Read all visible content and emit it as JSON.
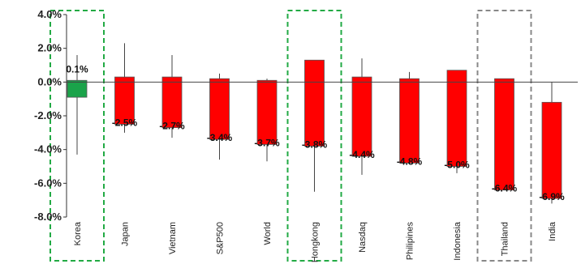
{
  "chart_data": {
    "type": "candlestick",
    "title": "",
    "xlabel": "",
    "ylabel": "",
    "ylim": [
      -8.0,
      4.0
    ],
    "yticks": [
      4.0,
      2.0,
      0.0,
      -2.0,
      -4.0,
      -6.0,
      -8.0
    ],
    "ytick_labels": [
      "4.0%",
      "2.0%",
      "0.0%",
      "-2.0%",
      "-4.0%",
      "-6.0%",
      "-8.0%"
    ],
    "grid": false,
    "categories": [
      "Korea",
      "Japan",
      "Vietnam",
      "S&P500",
      "World",
      "Hongkong",
      "Nasdaq",
      "Philipines",
      "Indonesia",
      "Thailand",
      "India"
    ],
    "data": [
      {
        "open": 0.0,
        "close": 0.1,
        "high": 1.6,
        "low": -4.3,
        "body_low": -0.9,
        "label": "0.1%",
        "color": "#1aa34a"
      },
      {
        "open": 0.3,
        "close": -2.5,
        "high": 2.3,
        "low": -3.0,
        "label": "-2.5%",
        "color": "#ff0000"
      },
      {
        "open": 0.3,
        "close": -2.7,
        "high": 1.6,
        "low": -3.3,
        "label": "-2.7%",
        "color": "#ff0000"
      },
      {
        "open": 0.2,
        "close": -3.4,
        "high": 0.5,
        "low": -4.6,
        "label": "-3.4%",
        "color": "#ff0000"
      },
      {
        "open": 0.1,
        "close": -3.7,
        "high": 0.2,
        "low": -4.7,
        "label": "-3.7%",
        "color": "#ff0000"
      },
      {
        "open": 1.3,
        "close": -3.8,
        "high": 1.3,
        "low": -6.5,
        "label": "-3.8%",
        "color": "#ff0000"
      },
      {
        "open": 0.3,
        "close": -4.4,
        "high": 1.4,
        "low": -5.5,
        "label": "-4.4%",
        "color": "#ff0000"
      },
      {
        "open": 0.2,
        "close": -4.8,
        "high": 0.6,
        "low": -4.8,
        "label": "-4.8%",
        "color": "#ff0000"
      },
      {
        "open": 0.7,
        "close": -5.0,
        "high": 0.7,
        "low": -5.4,
        "label": "-5.0%",
        "color": "#ff0000"
      },
      {
        "open": 0.2,
        "close": -6.4,
        "high": 0.2,
        "low": -6.4,
        "label": "-6.4%",
        "color": "#ff0000"
      },
      {
        "open": -1.2,
        "close": -6.9,
        "high": 0.0,
        "low": -7.2,
        "label": "-6.9%",
        "color": "#ff0000"
      }
    ],
    "highlight_boxes": [
      {
        "category": "Korea",
        "color": "#22aa44"
      },
      {
        "category": "Hongkong",
        "color": "#22aa44"
      },
      {
        "category": "Thailand",
        "color": "#888888"
      }
    ]
  }
}
